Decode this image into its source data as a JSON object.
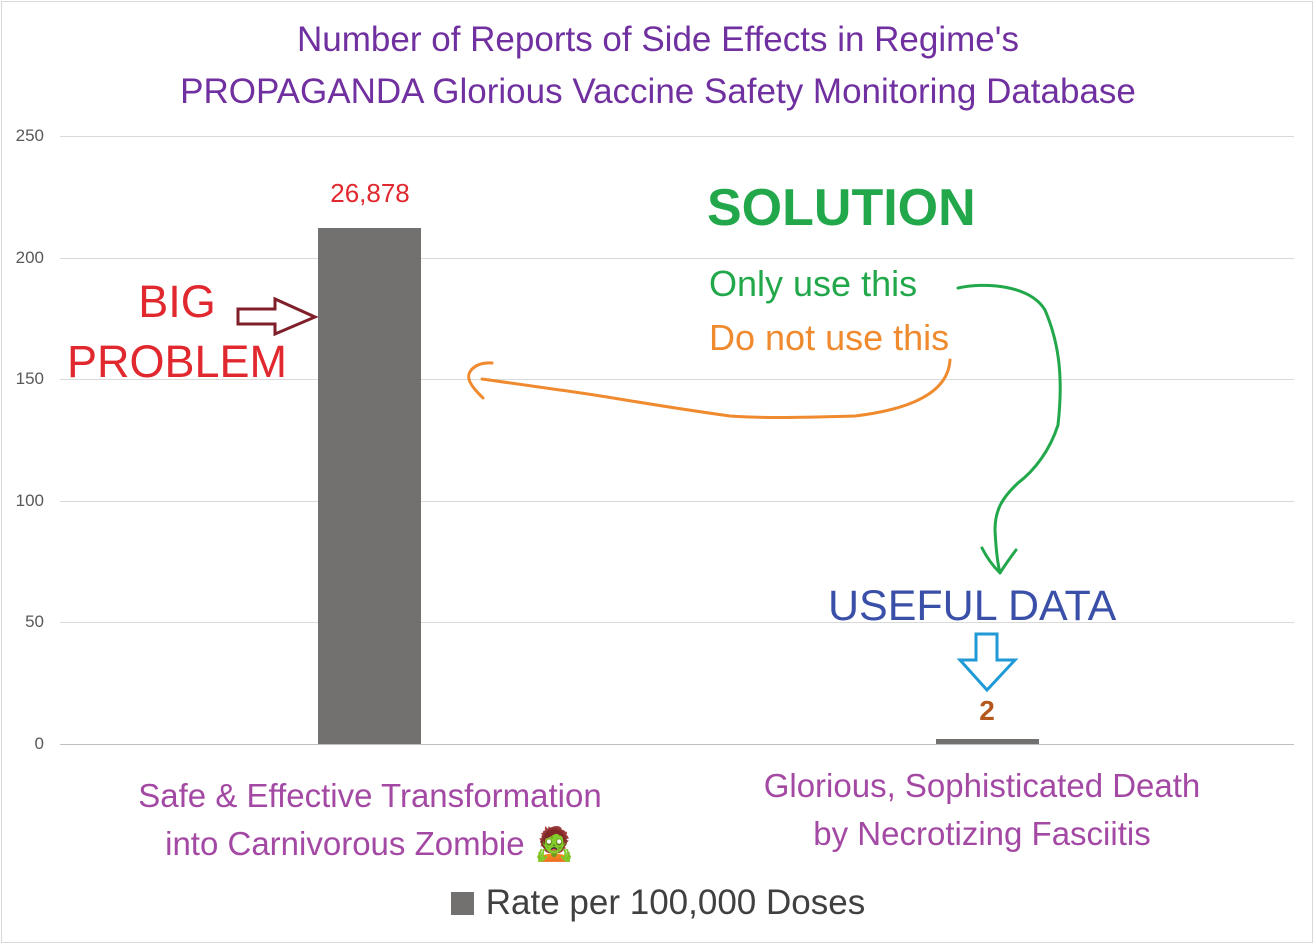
{
  "chart_data": {
    "type": "bar",
    "title_lines": [
      "Number of Reports of Side Effects in Regime's",
      "PROPAGANDA Glorious Vaccine Safety Monitoring Database"
    ],
    "categories": [
      "Safe & Effective Transformation into Carnivorous Zombie 🧟",
      "Glorious, Sophisticated Death by Necrotizing Fasciitis"
    ],
    "category_lines": [
      [
        "Safe & Effective Transformation",
        "into Carnivorous Zombie 🧟"
      ],
      [
        "Glorious, Sophisticated Death",
        "by Necrotizing Fasciitis"
      ]
    ],
    "series": [
      {
        "name": "Rate per 100,000 Doses",
        "values": [
          212,
          2
        ]
      }
    ],
    "data_labels": [
      "26,878",
      "2"
    ],
    "ylim": [
      0,
      250
    ],
    "yticks": [
      0,
      50,
      100,
      150,
      200,
      250
    ],
    "grid": true,
    "legend_position": "bottom",
    "xlabel": "",
    "ylabel": ""
  },
  "annotations": {
    "big_problem_line1": "BIG",
    "big_problem_line2": "PROBLEM",
    "solution": "SOLUTION",
    "only_use": "Only use this",
    "do_not_use": "Do not use this",
    "useful_data": "USEFUL DATA"
  },
  "colors": {
    "title": "#7030a0",
    "bar": "#737070",
    "category_label": "#a349a4",
    "big_problem": "#e0282e",
    "problem_arrow": "#7f1f2a",
    "solution": "#22a84a",
    "do_not_use": "#ef8a2e",
    "useful_data": "#3a4fa8",
    "useful_arrow": "#1f9ad6",
    "label_first": "#e0282e",
    "label_second": "#b4571c"
  }
}
